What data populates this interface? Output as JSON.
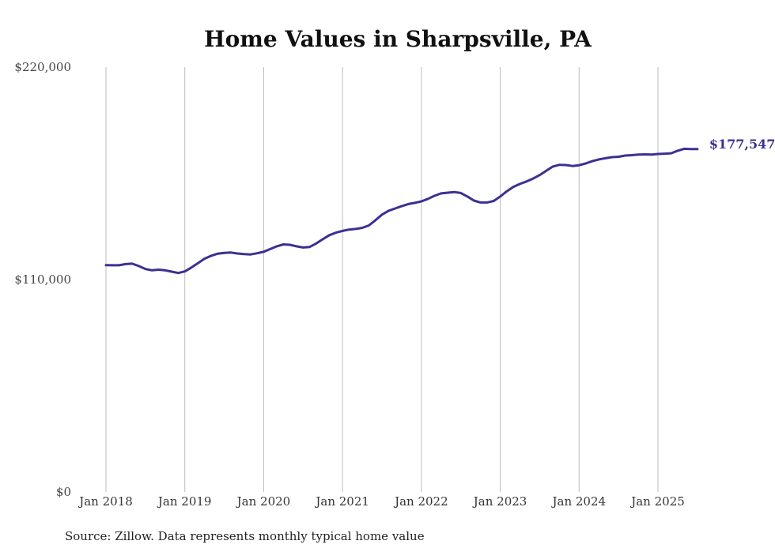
{
  "chart_data": {
    "type": "line",
    "title": "Home Values in Sharpsville, PA",
    "xlabel": "",
    "ylabel": "",
    "ylim": [
      0,
      220000
    ],
    "yticks": [
      0,
      110000,
      220000
    ],
    "ytick_labels": [
      "$0",
      "$110,000",
      "$220,000"
    ],
    "xticks": [
      "2018-01",
      "2019-01",
      "2020-01",
      "2021-01",
      "2022-01",
      "2023-01",
      "2024-01",
      "2025-01"
    ],
    "xtick_labels": [
      "Jan 2018",
      "Jan 2019",
      "Jan 2020",
      "Jan 2021",
      "Jan 2022",
      "Jan 2023",
      "Jan 2024",
      "Jan 2025"
    ],
    "grid": "vertical",
    "series": [
      {
        "color": "#3b3192",
        "end_label": "$177,547",
        "points": [
          [
            "2018-01",
            117500
          ],
          [
            "2018-02",
            117400
          ],
          [
            "2018-03",
            117400
          ],
          [
            "2018-04",
            118000
          ],
          [
            "2018-05",
            118200
          ],
          [
            "2018-06",
            117000
          ],
          [
            "2018-07",
            115500
          ],
          [
            "2018-08",
            114800
          ],
          [
            "2018-09",
            115100
          ],
          [
            "2018-10",
            114800
          ],
          [
            "2018-11",
            114100
          ],
          [
            "2018-12",
            113400
          ],
          [
            "2019-01",
            114200
          ],
          [
            "2019-02",
            116200
          ],
          [
            "2019-03",
            118500
          ],
          [
            "2019-04",
            120800
          ],
          [
            "2019-05",
            122300
          ],
          [
            "2019-06",
            123400
          ],
          [
            "2019-07",
            123800
          ],
          [
            "2019-08",
            124000
          ],
          [
            "2019-09",
            123500
          ],
          [
            "2019-10",
            123200
          ],
          [
            "2019-11",
            123000
          ],
          [
            "2019-12",
            123600
          ],
          [
            "2020-01",
            124400
          ],
          [
            "2020-02",
            125800
          ],
          [
            "2020-03",
            127200
          ],
          [
            "2020-04",
            128200
          ],
          [
            "2020-05",
            128000
          ],
          [
            "2020-06",
            127200
          ],
          [
            "2020-07",
            126600
          ],
          [
            "2020-08",
            126900
          ],
          [
            "2020-09",
            128700
          ],
          [
            "2020-10",
            130900
          ],
          [
            "2020-11",
            133000
          ],
          [
            "2020-12",
            134300
          ],
          [
            "2021-01",
            135200
          ],
          [
            "2021-02",
            135900
          ],
          [
            "2021-03",
            136200
          ],
          [
            "2021-04",
            136800
          ],
          [
            "2021-05",
            138000
          ],
          [
            "2021-06",
            140700
          ],
          [
            "2021-07",
            143600
          ],
          [
            "2021-08",
            145600
          ],
          [
            "2021-09",
            146800
          ],
          [
            "2021-10",
            148000
          ],
          [
            "2021-11",
            149100
          ],
          [
            "2021-12",
            149700
          ],
          [
            "2022-01",
            150500
          ],
          [
            "2022-02",
            151800
          ],
          [
            "2022-03",
            153400
          ],
          [
            "2022-04",
            154600
          ],
          [
            "2022-05",
            155000
          ],
          [
            "2022-06",
            155300
          ],
          [
            "2022-07",
            154800
          ],
          [
            "2022-08",
            153000
          ],
          [
            "2022-09",
            150900
          ],
          [
            "2022-10",
            149900
          ],
          [
            "2022-11",
            149900
          ],
          [
            "2022-12",
            150700
          ],
          [
            "2023-01",
            153000
          ],
          [
            "2023-02",
            155700
          ],
          [
            "2023-03",
            158000
          ],
          [
            "2023-04",
            159500
          ],
          [
            "2023-05",
            160800
          ],
          [
            "2023-06",
            162300
          ],
          [
            "2023-07",
            164100
          ],
          [
            "2023-08",
            166300
          ],
          [
            "2023-09",
            168500
          ],
          [
            "2023-10",
            169400
          ],
          [
            "2023-11",
            169300
          ],
          [
            "2023-12",
            168800
          ],
          [
            "2024-01",
            169200
          ],
          [
            "2024-02",
            170100
          ],
          [
            "2024-03",
            171300
          ],
          [
            "2024-04",
            172200
          ],
          [
            "2024-05",
            172800
          ],
          [
            "2024-06",
            173400
          ],
          [
            "2024-07",
            173600
          ],
          [
            "2024-08",
            174200
          ],
          [
            "2024-09",
            174400
          ],
          [
            "2024-10",
            174700
          ],
          [
            "2024-11",
            174800
          ],
          [
            "2024-12",
            174700
          ],
          [
            "2025-01",
            175000
          ],
          [
            "2025-02",
            175200
          ],
          [
            "2025-03",
            175400
          ],
          [
            "2025-04",
            176700
          ],
          [
            "2025-05",
            177700
          ],
          [
            "2025-06",
            177600
          ],
          [
            "2025-07",
            177547
          ]
        ]
      }
    ]
  },
  "footer": {
    "source": "Source: Zillow. Data represents monthly typical home value"
  }
}
